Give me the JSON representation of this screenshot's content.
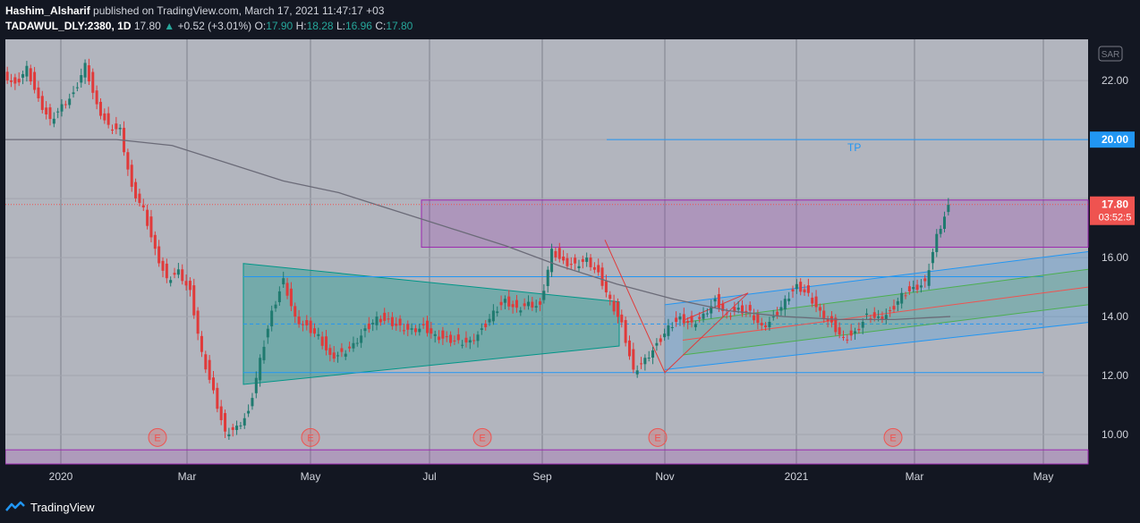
{
  "header": {
    "author": "Hashim_Alsharif",
    "published_text": " published on TradingView.com, March 17, 2021 11:47:17 +03",
    "symbol": "TADAWUL_DLY:2380, 1D",
    "last": "17.80",
    "change": "+0.52 (+3.01%)",
    "o_label": "O:",
    "o": "17.90",
    "h_label": "H:",
    "h": "18.28",
    "l_label": "L:",
    "l": "16.96",
    "c_label": "C:",
    "c": "17.80"
  },
  "footer": {
    "brand": "TradingView"
  },
  "colors": {
    "bg_plot": "#b2b5be",
    "up": "#1f7a6f",
    "down": "#e03a3a",
    "ma": "#6b6b78",
    "blue": "#2196f3",
    "purple": "#9c27b0",
    "price_tag": "#ef5350"
  },
  "chart_data": {
    "type": "candlestick",
    "currency_label": "SAR",
    "y_ticks": [
      "10.00",
      "12.00",
      "14.00",
      "16.00",
      "22.00"
    ],
    "ylim": [
      9.0,
      23.4
    ],
    "x_ticks": [
      "2020",
      "Mar",
      "May",
      "Jul",
      "Sep",
      "Nov",
      "2021",
      "Mar",
      "May"
    ],
    "last_price_label": "17.80",
    "countdown_label": "03:52:5",
    "tp_price_label": "20.00",
    "tp_text": "TP",
    "earnings_marker": "E",
    "earnings_count": 5,
    "close_path": [
      22.3,
      21.9,
      22.5,
      21.4,
      20.7,
      21.2,
      21.6,
      22.6,
      21.2,
      20.5,
      20.4,
      18.4,
      17.7,
      16.3,
      15.3,
      15.6,
      14.9,
      12.8,
      11.5,
      10.1,
      10.3,
      10.8,
      12.6,
      14.2,
      15.3,
      14.0,
      13.7,
      13.4,
      12.7,
      12.8,
      13.1,
      13.6,
      14.0,
      13.9,
      13.7,
      13.6,
      13.7,
      13.4,
      13.3,
      13.2,
      13.2,
      13.6,
      14.2,
      14.6,
      14.3,
      14.5,
      14.4,
      16.3,
      15.9,
      15.8,
      16.0,
      15.5,
      14.6,
      13.8,
      12.2,
      12.6,
      13.1,
      13.7,
      14.0,
      13.8,
      14.1,
      14.6,
      14.1,
      14.3,
      14.2,
      13.7,
      14.0,
      14.6,
      15.1,
      14.8,
      14.2,
      13.8,
      13.3,
      13.5,
      14.1,
      14.0,
      14.2,
      14.8,
      15.0,
      15.2,
      16.8,
      17.8
    ],
    "ma_values": [
      20.0,
      20.0,
      20.0,
      19.8,
      19.2,
      18.6,
      18.2,
      17.6,
      17.0,
      16.4,
      15.7,
      15.1,
      14.6,
      14.2,
      14.0,
      13.9,
      13.9,
      14.0
    ],
    "ma_xlim": [
      0,
      1
    ],
    "resistance_zone": [
      16.35,
      17.95
    ],
    "bottom_zone": [
      9.25,
      9.45
    ],
    "triangle": {
      "left": [
        15.8,
        11.7
      ],
      "right": [
        14.5,
        13.0
      ],
      "mid": 13.75
    },
    "levels": [
      15.35,
      12.1,
      20.0
    ],
    "channel": {
      "upper": [
        14.4,
        16.2
      ],
      "lower": [
        12.2,
        13.8
      ],
      "mid": [
        13.2,
        15.0
      ],
      "inner_up": [
        13.8,
        15.6
      ],
      "inner_low": [
        12.7,
        14.4
      ]
    }
  }
}
